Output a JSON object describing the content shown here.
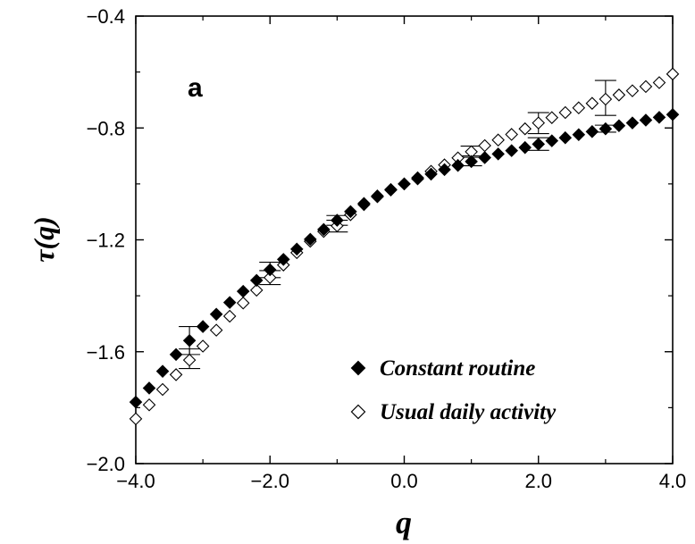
{
  "chart_data": {
    "type": "scatter",
    "panel_label": "a",
    "xlabel": "q",
    "ylabel": "τ(q)",
    "xlim": [
      -4.0,
      4.0
    ],
    "ylim": [
      -2.0,
      -0.4
    ],
    "xticks": [
      "−4.0",
      "−2.0",
      "0.0",
      "2.0",
      "4.0"
    ],
    "yticks": [
      "−2.0",
      "−1.6",
      "−1.2",
      "−0.8",
      "−0.4"
    ],
    "legend_position": "bottom-right",
    "series": [
      {
        "name": "Constant routine",
        "marker": "filled-diamond",
        "points": [
          [
            -4.0,
            -1.78
          ],
          [
            -3.8,
            -1.73
          ],
          [
            -3.6,
            -1.67
          ],
          [
            -3.4,
            -1.61
          ],
          [
            -3.2,
            -1.56
          ],
          [
            -3.0,
            -1.51
          ],
          [
            -2.8,
            -1.466
          ],
          [
            -2.6,
            -1.424
          ],
          [
            -2.4,
            -1.384
          ],
          [
            -2.2,
            -1.345
          ],
          [
            -2.0,
            -1.307
          ],
          [
            -1.8,
            -1.27
          ],
          [
            -1.6,
            -1.233
          ],
          [
            -1.4,
            -1.198
          ],
          [
            -1.2,
            -1.163
          ],
          [
            -1.0,
            -1.13
          ],
          [
            -0.8,
            -1.099
          ],
          [
            -0.6,
            -1.07
          ],
          [
            -0.4,
            -1.043
          ],
          [
            -0.2,
            -1.02
          ],
          [
            0.0,
            -1.0
          ],
          [
            0.2,
            -0.982
          ],
          [
            0.4,
            -0.965
          ],
          [
            0.6,
            -0.949
          ],
          [
            0.8,
            -0.934
          ],
          [
            1.0,
            -0.92
          ],
          [
            1.2,
            -0.906
          ],
          [
            1.4,
            -0.893
          ],
          [
            1.6,
            -0.881
          ],
          [
            1.8,
            -0.87
          ],
          [
            2.0,
            -0.858
          ],
          [
            2.2,
            -0.846
          ],
          [
            2.4,
            -0.835
          ],
          [
            2.6,
            -0.824
          ],
          [
            2.8,
            -0.813
          ],
          [
            3.0,
            -0.803
          ],
          [
            3.2,
            -0.792
          ],
          [
            3.4,
            -0.782
          ],
          [
            3.6,
            -0.772
          ],
          [
            3.8,
            -0.762
          ],
          [
            4.0,
            -0.752
          ]
        ],
        "error_bars": [
          {
            "x": -3.2,
            "low": -1.61,
            "high": -1.51
          },
          {
            "x": -2.0,
            "low": -1.335,
            "high": -1.28
          },
          {
            "x": -1.0,
            "low": -1.148,
            "high": -1.113
          },
          {
            "x": 1.0,
            "low": -0.935,
            "high": -0.905
          },
          {
            "x": 2.0,
            "low": -0.88,
            "high": -0.835
          },
          {
            "x": 3.0,
            "low": -0.815,
            "high": -0.79
          }
        ]
      },
      {
        "name": "Usual daily activity",
        "marker": "open-diamond",
        "points": [
          [
            -4.0,
            -1.84
          ],
          [
            -3.8,
            -1.79
          ],
          [
            -3.6,
            -1.735
          ],
          [
            -3.4,
            -1.682
          ],
          [
            -3.2,
            -1.63
          ],
          [
            -3.0,
            -1.58
          ],
          [
            -2.8,
            -1.523
          ],
          [
            -2.6,
            -1.473
          ],
          [
            -2.4,
            -1.426
          ],
          [
            -2.2,
            -1.38
          ],
          [
            -2.0,
            -1.335
          ],
          [
            -1.8,
            -1.29
          ],
          [
            -1.6,
            -1.246
          ],
          [
            -1.4,
            -1.205
          ],
          [
            -1.2,
            -1.17
          ],
          [
            -1.0,
            -1.15
          ],
          [
            -0.8,
            -1.11
          ],
          [
            -0.6,
            -1.074
          ],
          [
            -0.4,
            -1.046
          ],
          [
            -0.2,
            -1.022
          ],
          [
            0.0,
            -1.0
          ],
          [
            0.2,
            -0.978
          ],
          [
            0.4,
            -0.955
          ],
          [
            0.6,
            -0.932
          ],
          [
            0.8,
            -0.907
          ],
          [
            1.0,
            -0.885
          ],
          [
            1.2,
            -0.863
          ],
          [
            1.4,
            -0.843
          ],
          [
            1.6,
            -0.823
          ],
          [
            1.8,
            -0.803
          ],
          [
            2.0,
            -0.782
          ],
          [
            2.2,
            -0.763
          ],
          [
            2.4,
            -0.745
          ],
          [
            2.6,
            -0.728
          ],
          [
            2.8,
            -0.712
          ],
          [
            3.0,
            -0.697
          ],
          [
            3.2,
            -0.682
          ],
          [
            3.4,
            -0.667
          ],
          [
            3.6,
            -0.652
          ],
          [
            3.8,
            -0.638
          ],
          [
            4.0,
            -0.607
          ]
        ],
        "error_bars": [
          {
            "x": -3.2,
            "low": -1.66,
            "high": -1.59
          },
          {
            "x": -2.0,
            "low": -1.36,
            "high": -1.31
          },
          {
            "x": -1.0,
            "low": -1.172,
            "high": -1.13
          },
          {
            "x": 1.0,
            "low": -0.9,
            "high": -0.865
          },
          {
            "x": 2.0,
            "low": -0.82,
            "high": -0.745
          },
          {
            "x": 3.0,
            "low": -0.755,
            "high": -0.63
          }
        ]
      }
    ]
  }
}
